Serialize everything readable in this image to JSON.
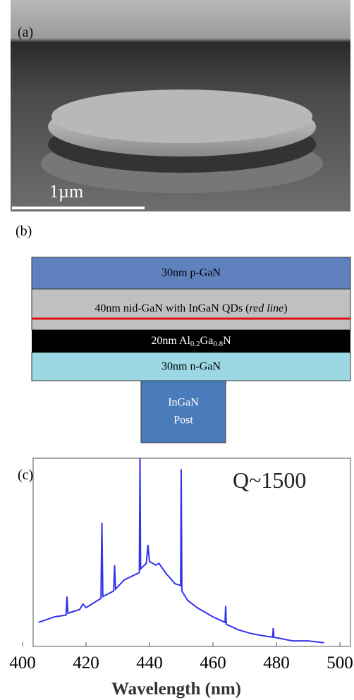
{
  "panel_a": {
    "label": "(a)",
    "scale_bar": "1µm"
  },
  "panel_b": {
    "label": "(b)",
    "layer_1": "30nm p-GaN",
    "layer_2": [
      "40nm nid-GaN with InGaN QDs (",
      "red line",
      ")"
    ],
    "layer_3": [
      "20nm Al",
      "0.2",
      "Ga",
      "0.8",
      "N"
    ],
    "layer_4": "30nm n-GaN",
    "post": [
      "InGaN",
      "Post"
    ]
  },
  "chart_data": {
    "type": "line",
    "label": "(c)",
    "annotation": "Q~1500",
    "x_label": "Wavelength (nm)",
    "x": [
      405,
      410,
      413.7,
      414,
      414.3,
      418,
      419,
      420,
      424.7,
      425,
      425.3,
      428.7,
      429,
      429.3,
      432,
      436.8,
      437,
      437.2,
      439,
      439.5,
      440,
      442,
      443,
      445,
      448,
      449.8,
      450,
      450.2,
      452,
      455,
      460,
      463.8,
      464,
      464.2,
      468,
      472,
      475,
      478.8,
      479,
      479.2,
      485,
      490,
      495
    ],
    "series": [
      {
        "color": "#3333ee",
        "values": [
          13,
          16,
          17,
          27,
          18,
          20,
          23,
          21,
          26,
          67,
          27,
          30,
          44,
          31,
          36,
          40,
          102,
          42,
          45,
          55,
          46,
          44,
          45,
          40,
          34,
          33,
          96,
          30,
          25,
          21,
          16,
          13,
          22,
          12,
          9,
          7,
          6,
          5,
          10,
          5,
          3,
          3,
          2
        ]
      }
    ],
    "xlim": [
      400,
      500
    ],
    "xticks": [
      400,
      420,
      440,
      460,
      480,
      500
    ],
    "ylim": [
      0,
      105
    ]
  }
}
